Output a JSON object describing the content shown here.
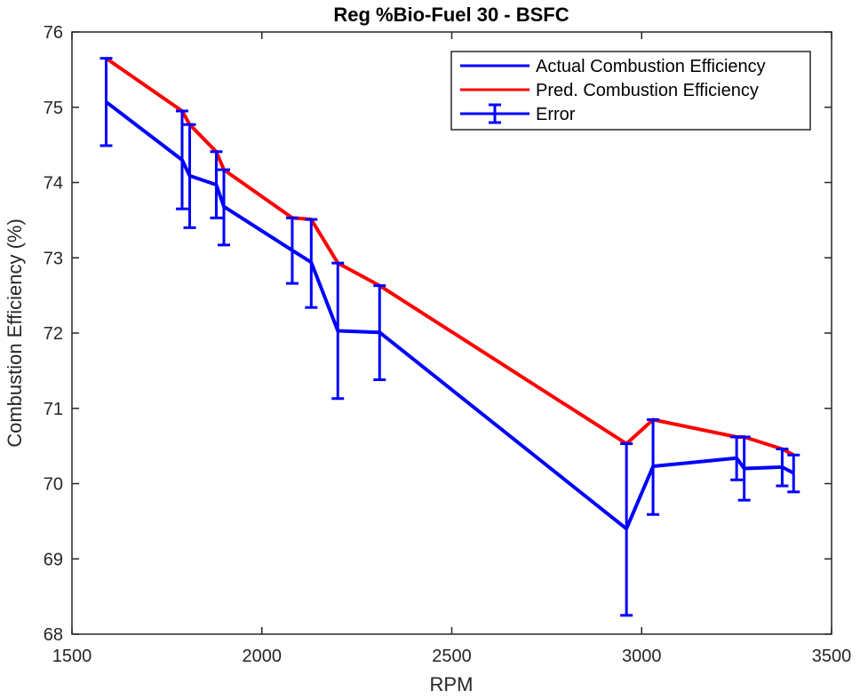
{
  "chart_data": {
    "type": "line",
    "title": "Reg %Bio-Fuel 30 - BSFC",
    "xlabel": "RPM",
    "ylabel": "Combustion Efficiency (%)",
    "xlim": [
      1500,
      3500
    ],
    "ylim": [
      68,
      76
    ],
    "xticks": [
      "1500",
      "2000",
      "2500",
      "3000",
      "3500"
    ],
    "yticks": [
      "68",
      "69",
      "70",
      "71",
      "72",
      "73",
      "74",
      "75",
      "76"
    ],
    "grid": false,
    "legend_position": "top-right",
    "x": [
      1590,
      1790,
      1810,
      1880,
      1900,
      2080,
      2130,
      2200,
      2310,
      2960,
      3030,
      3250,
      3270,
      3370,
      3400
    ],
    "series": [
      {
        "name": "Actual Combustion Efficiency",
        "color": "#0000ff",
        "values": [
          75.07,
          74.3,
          74.09,
          73.97,
          73.68,
          73.1,
          72.94,
          72.03,
          72.01,
          69.4,
          70.23,
          70.34,
          70.2,
          70.22,
          70.14
        ]
      },
      {
        "name": "Pred. Combustion Efficiency",
        "color": "#ff0000",
        "values": [
          75.65,
          74.95,
          74.77,
          74.41,
          74.17,
          73.53,
          73.51,
          72.93,
          72.63,
          70.53,
          70.85,
          70.62,
          70.62,
          70.46,
          70.38
        ]
      }
    ],
    "error_bars": {
      "name": "Error",
      "color": "#0000ff",
      "lower": [
        74.49,
        73.65,
        73.4,
        73.53,
        73.17,
        72.66,
        72.34,
        71.13,
        71.38,
        68.25,
        69.59,
        70.05,
        69.78,
        69.97,
        69.89
      ],
      "upper": [
        75.65,
        74.95,
        74.77,
        74.41,
        74.17,
        73.53,
        73.51,
        72.93,
        72.63,
        70.53,
        70.85,
        70.62,
        70.62,
        70.46,
        70.38
      ]
    }
  }
}
